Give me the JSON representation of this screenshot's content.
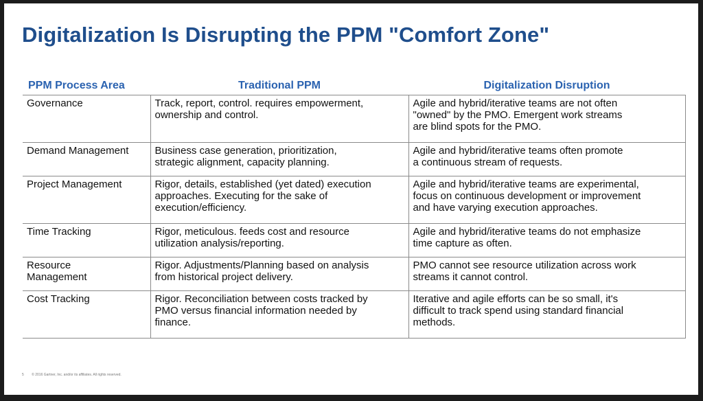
{
  "slide": {
    "title": "Digitalization Is Disrupting the PPM \"Comfort Zone\"",
    "footer": {
      "page_number": "5",
      "copyright": "© 2016 Gartner, Inc. and/or its affiliates. All rights reserved."
    }
  },
  "table": {
    "headers": [
      "PPM Process Area",
      "Traditional PPM",
      "Digitalization Disruption"
    ],
    "rows": [
      {
        "area": "Governance",
        "traditional": "Track, report, control. requires empowerment,\nownership and control.",
        "disruption": "Agile and hybrid/iterative teams are not often\n\"owned\" by the PMO. Emergent work streams\nare blind spots for the PMO."
      },
      {
        "area": "Demand Management",
        "traditional": "Business case generation, prioritization,\nstrategic alignment, capacity planning.",
        "disruption": "Agile and hybrid/iterative teams often promote\na continuous stream of requests."
      },
      {
        "area": "Project Management",
        "traditional": "Rigor, details, established (yet dated) execution\napproaches. Executing for the sake of\nexecution/efficiency.",
        "disruption": "Agile and hybrid/iterative teams are experimental,\nfocus on continuous development or improvement\nand have varying execution approaches."
      },
      {
        "area": "Time Tracking",
        "traditional": "Rigor, meticulous. feeds cost and resource\nutilization analysis/reporting.",
        "disruption": "Agile and hybrid/iterative teams do not emphasize\ntime capture as often."
      },
      {
        "area": "Resource\nManagement",
        "traditional": "Rigor. Adjustments/Planning based on analysis\nfrom historical project delivery.",
        "disruption": "PMO cannot see resource utilization across work\nstreams it cannot control."
      },
      {
        "area": "Cost Tracking",
        "traditional": "Rigor. Reconciliation between costs tracked by\nPMO versus financial information needed by\nfinance.",
        "disruption": "Iterative and agile efforts can be so small, it's\ndifficult to track spend using standard financial\nmethods."
      }
    ]
  }
}
